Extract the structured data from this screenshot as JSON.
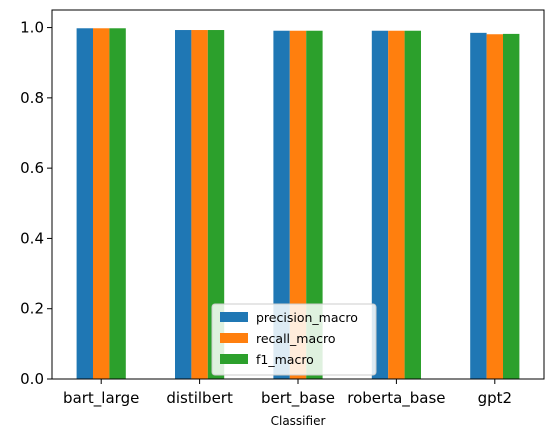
{
  "chart_data": {
    "type": "bar",
    "categories": [
      "bart_large",
      "distilbert",
      "bert_base",
      "roberta_base",
      "gpt2"
    ],
    "series": [
      {
        "name": "precision_macro",
        "color": "#1f77b4",
        "values": [
          0.998,
          0.993,
          0.991,
          0.991,
          0.985
        ]
      },
      {
        "name": "recall_macro",
        "color": "#ff7f0e",
        "values": [
          0.998,
          0.993,
          0.991,
          0.991,
          0.981
        ]
      },
      {
        "name": "f1_macro",
        "color": "#2ca02c",
        "values": [
          0.998,
          0.993,
          0.991,
          0.991,
          0.982
        ]
      }
    ],
    "title": "",
    "xlabel": "Classifier",
    "ylabel": "",
    "ylim": [
      0,
      1.05
    ],
    "yticks": [
      0.0,
      0.2,
      0.4,
      0.6,
      0.8,
      1.0
    ],
    "ytick_labels": [
      "0.0",
      "0.2",
      "0.4",
      "0.6",
      "0.8",
      "1.0"
    ],
    "grid": false,
    "legend_position": "bottom-center"
  }
}
